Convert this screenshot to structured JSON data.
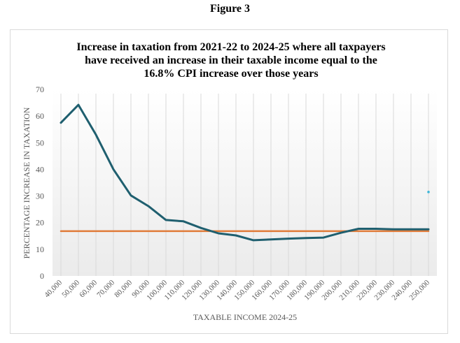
{
  "figure_label": "Figure 3",
  "chart_data": {
    "type": "line",
    "title_lines": [
      "Increase in taxation from 2021-22 to 2024-25 where all taxpayers",
      "have received an increase in their taxable income equal to the",
      "16.8% CPI increase over those years"
    ],
    "xlabel": "TAXABLE INCOME 2024-25",
    "ylabel": "PERCENTAGE  INCREASE  IN  TAXATION",
    "ylim": [
      0,
      70
    ],
    "yticks": [
      "0",
      "10",
      "20",
      "30",
      "40",
      "50",
      "60",
      "70"
    ],
    "categories": [
      "40,000",
      "50,000",
      "60,000",
      "70,000",
      "80,000",
      "90,000",
      "100,000",
      "110,000",
      "120,000",
      "130,000",
      "140,000",
      "150,000",
      "160,000",
      "170,000",
      "180,000",
      "190,000",
      "200,000",
      "210,000",
      "220,000",
      "230,000",
      "240,000",
      "250,000"
    ],
    "series": [
      {
        "name": "Percentage increase in taxation",
        "color": "#1f5f6f",
        "values": [
          57.5,
          64.2,
          53.0,
          40.0,
          30.2,
          26.2,
          21.0,
          20.5,
          18.0,
          16.0,
          15.2,
          13.4,
          13.7,
          14.0,
          14.2,
          14.4,
          16.2,
          17.7,
          17.7,
          17.5,
          17.5,
          17.5
        ]
      },
      {
        "name": "CPI increase",
        "color": "#e07b39",
        "values": [
          16.8,
          16.8,
          16.8,
          16.8,
          16.8,
          16.8,
          16.8,
          16.8,
          16.8,
          16.8,
          16.8,
          16.8,
          16.8,
          16.8,
          16.8,
          16.8,
          16.8,
          16.8,
          16.8,
          16.8,
          16.8,
          16.8
        ]
      }
    ],
    "stray_point": {
      "value": 31.5,
      "color": "#3fb6d8"
    },
    "grid": "vertical"
  }
}
